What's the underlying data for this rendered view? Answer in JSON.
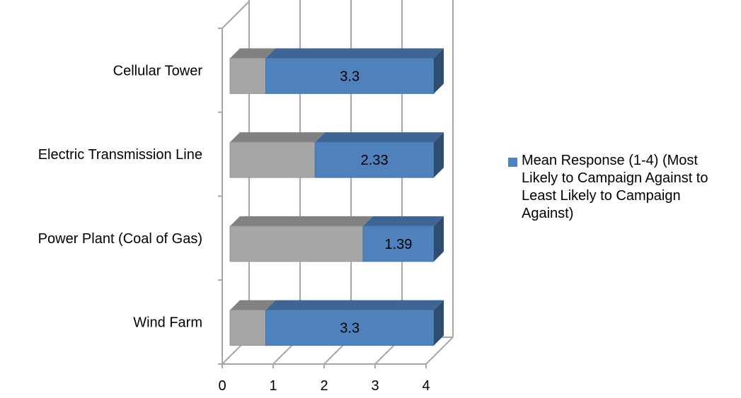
{
  "chart_data": {
    "type": "bar",
    "orientation": "horizontal",
    "stacked": true,
    "three_d": true,
    "categories": [
      "Cellular Tower",
      "Electric Transmission Line",
      "Power Plant (Coal of Gas)",
      "Wind Farm"
    ],
    "series": [
      {
        "values": [
          0.7,
          1.67,
          2.61,
          0.7
        ],
        "color": "#A6A6A6",
        "in_legend": false
      },
      {
        "name": "Mean Response (1-4) (Most Likely to Campaign Against to Least Likely to Campaign Against)",
        "values": [
          3.3,
          2.33,
          1.39,
          3.3
        ],
        "labels": [
          "3.3",
          "2.33",
          "1.39",
          "3.3"
        ],
        "color": "#4F81BD"
      }
    ],
    "xlim": [
      0,
      4
    ],
    "x_ticks": [
      "0",
      "1",
      "2",
      "3",
      "4"
    ],
    "grid": true,
    "legend_position": "right"
  }
}
